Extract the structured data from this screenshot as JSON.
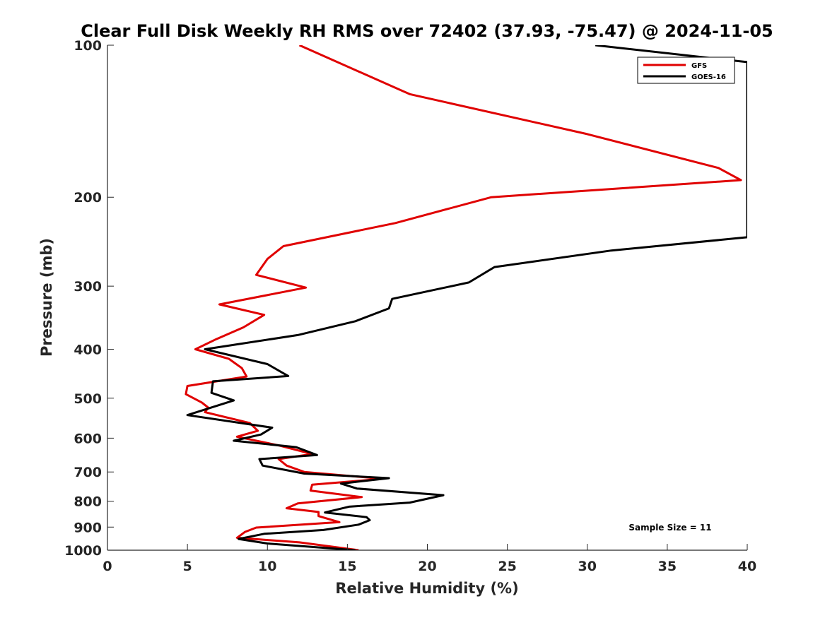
{
  "chart_data": {
    "type": "line",
    "title": "Clear Full Disk Weekly RH RMS over 72402 (37.93, -75.47) @ 2024-11-05",
    "xlabel": "Relative Humidity (%)",
    "ylabel": "Pressure (mb)",
    "xlim": [
      0,
      40
    ],
    "ylim": [
      100,
      1000
    ],
    "yscale": "log",
    "y_reversed": true,
    "grid": false,
    "legend_position": "top-right",
    "xticks": [
      0,
      5,
      10,
      15,
      20,
      25,
      30,
      35,
      40
    ],
    "xtick_labels": [
      "0",
      "5",
      "10",
      "15",
      "20",
      "25",
      "30",
      "35",
      "40"
    ],
    "yticks": [
      100,
      200,
      300,
      400,
      500,
      600,
      700,
      800,
      900,
      1000
    ],
    "ytick_labels": [
      "100",
      "200",
      "300",
      "400",
      "500",
      "600",
      "700",
      "800",
      "900",
      "1000"
    ],
    "annotations": [
      {
        "text": "Sample Size = 11",
        "position": "bottom-right"
      }
    ],
    "series": [
      {
        "name": "GFS",
        "color": "#e00000",
        "points": [
          [
            12.0,
            100
          ],
          [
            18.9,
            125
          ],
          [
            30.0,
            150
          ],
          [
            38.2,
            175
          ],
          [
            39.6,
            185
          ],
          [
            24.0,
            200
          ],
          [
            18.0,
            225
          ],
          [
            11.0,
            250
          ],
          [
            10.0,
            265
          ],
          [
            9.3,
            285
          ],
          [
            12.4,
            302
          ],
          [
            7.0,
            326
          ],
          [
            9.8,
            342
          ],
          [
            8.5,
            362
          ],
          [
            6.8,
            382
          ],
          [
            5.5,
            400
          ],
          [
            7.6,
            418
          ],
          [
            8.4,
            436
          ],
          [
            8.7,
            453
          ],
          [
            5.0,
            473
          ],
          [
            4.9,
            491
          ],
          [
            5.9,
            510
          ],
          [
            6.3,
            522
          ],
          [
            6.1,
            533
          ],
          [
            8.9,
            560
          ],
          [
            9.4,
            580
          ],
          [
            8.1,
            596
          ],
          [
            10.7,
            620
          ],
          [
            12.8,
            645
          ],
          [
            10.7,
            660
          ],
          [
            11.2,
            680
          ],
          [
            12.3,
            700
          ],
          [
            17.2,
            722
          ],
          [
            12.8,
            742
          ],
          [
            12.7,
            762
          ],
          [
            15.9,
            785
          ],
          [
            11.9,
            808
          ],
          [
            11.2,
            826
          ],
          [
            13.2,
            840
          ],
          [
            13.2,
            856
          ],
          [
            14.5,
            880
          ],
          [
            9.3,
            902
          ],
          [
            8.6,
            920
          ],
          [
            8.1,
            945
          ],
          [
            12.0,
            965
          ],
          [
            15.7,
            1000
          ]
        ]
      },
      {
        "name": "GOES-16",
        "color": "#000000",
        "points": [
          [
            30.5,
            100
          ],
          [
            40.0,
            108
          ],
          [
            40.0,
            240
          ],
          [
            31.5,
            255
          ],
          [
            24.2,
            275
          ],
          [
            22.6,
            295
          ],
          [
            17.8,
            318
          ],
          [
            17.6,
            332
          ],
          [
            15.5,
            352
          ],
          [
            11.9,
            375
          ],
          [
            6.1,
            400
          ],
          [
            10.0,
            428
          ],
          [
            11.3,
            452
          ],
          [
            6.6,
            463
          ],
          [
            6.5,
            488
          ],
          [
            7.9,
            505
          ],
          [
            5.0,
            540
          ],
          [
            10.3,
            572
          ],
          [
            9.6,
            590
          ],
          [
            7.9,
            607
          ],
          [
            11.8,
            625
          ],
          [
            13.1,
            648
          ],
          [
            9.5,
            660
          ],
          [
            9.7,
            680
          ],
          [
            12.3,
            705
          ],
          [
            17.6,
            720
          ],
          [
            14.6,
            738
          ],
          [
            15.6,
            755
          ],
          [
            21.0,
            778
          ],
          [
            18.9,
            805
          ],
          [
            15.1,
            820
          ],
          [
            13.6,
            842
          ],
          [
            16.2,
            860
          ],
          [
            16.4,
            872
          ],
          [
            15.7,
            890
          ],
          [
            13.5,
            912
          ],
          [
            9.8,
            928
          ],
          [
            8.2,
            950
          ],
          [
            10.0,
            970
          ],
          [
            15.5,
            1000
          ]
        ]
      }
    ]
  }
}
